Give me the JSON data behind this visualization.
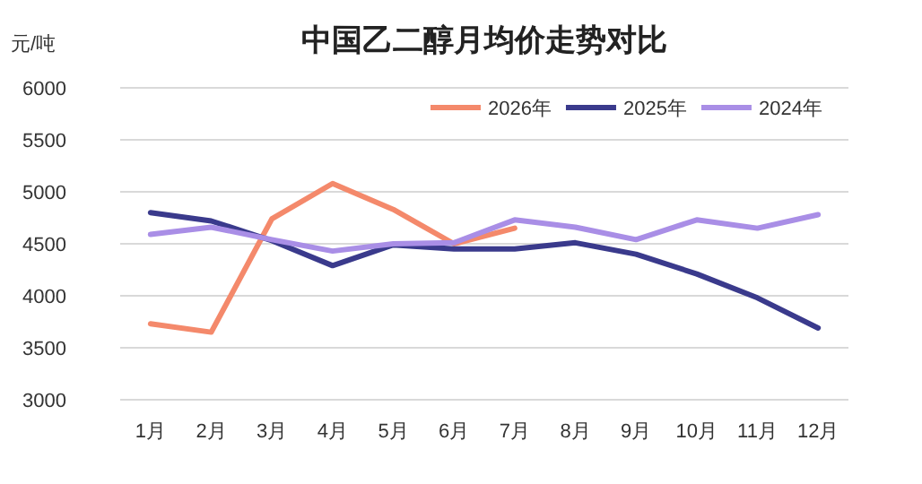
{
  "chart_data": {
    "type": "line",
    "title": "中国乙二醇月均价走势对比",
    "ylabel": "元/吨",
    "categories": [
      "1月",
      "2月",
      "3月",
      "4月",
      "5月",
      "6月",
      "7月",
      "8月",
      "9月",
      "10月",
      "11月",
      "12月"
    ],
    "series": [
      {
        "name": "2026年",
        "color": "#f4896b",
        "values": [
          3730,
          3650,
          4740,
          5080,
          4830,
          4500,
          4650,
          null,
          null,
          null,
          null,
          null
        ]
      },
      {
        "name": "2025年",
        "color": "#3a3a8c",
        "values": [
          4800,
          4720,
          4530,
          4290,
          4490,
          4450,
          4450,
          4510,
          4400,
          4210,
          3980,
          3690
        ]
      },
      {
        "name": "2024年",
        "color": "#a98ee6",
        "values": [
          4590,
          4660,
          4540,
          4430,
          4500,
          4510,
          4730,
          4660,
          4540,
          4730,
          4650,
          4780
        ]
      }
    ],
    "ylim": [
      3000,
      6000
    ],
    "yticks": [
      3000,
      3500,
      4000,
      4500,
      5000,
      5500,
      6000
    ],
    "grid": "y",
    "legend": "top right",
    "marker": "none",
    "line_style": "solid"
  }
}
